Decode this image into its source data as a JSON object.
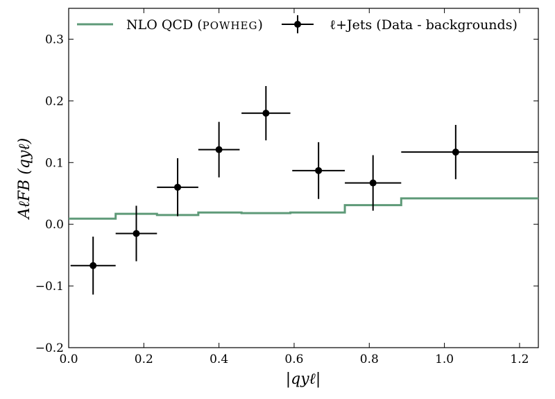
{
  "chart_data": {
    "type": "line",
    "title": "",
    "xlabel": "|qyℓ|",
    "ylabel": "AℓFB (qyℓ)",
    "xlim": [
      0.0,
      1.25
    ],
    "ylim": [
      -0.2,
      0.35
    ],
    "x_ticks": [
      0.0,
      0.2,
      0.4,
      0.6,
      0.8,
      1.0,
      1.2
    ],
    "x_tick_labels": [
      "0.0",
      "0.2",
      "0.4",
      "0.6",
      "0.8",
      "1.0",
      "1.2"
    ],
    "y_ticks": [
      -0.2,
      -0.1,
      0.0,
      0.1,
      0.2,
      0.3
    ],
    "y_tick_labels": [
      "−0.2",
      "−0.1",
      "0.0",
      "0.1",
      "0.2",
      "0.3"
    ],
    "grid": false,
    "legend_position": "top",
    "series": [
      {
        "name": "NLO QCD (POWHEG)",
        "kind": "step",
        "color": "#5e9a78",
        "bin_edges": [
          0.0,
          0.125,
          0.235,
          0.345,
          0.46,
          0.59,
          0.735,
          0.885,
          1.25
        ],
        "values": [
          0.009,
          0.017,
          0.015,
          0.019,
          0.018,
          0.019,
          0.031,
          0.042
        ]
      },
      {
        "name": "ℓ+Jets (Data - backgrounds)",
        "kind": "errorbar",
        "color": "#000000",
        "points": [
          {
            "x": 0.065,
            "y": -0.067,
            "xerr_low": 0.06,
            "xerr_high": 0.06,
            "yerr": 0.047
          },
          {
            "x": 0.18,
            "y": -0.015,
            "xerr_low": 0.055,
            "xerr_high": 0.055,
            "yerr": 0.045
          },
          {
            "x": 0.29,
            "y": 0.06,
            "xerr_low": 0.055,
            "xerr_high": 0.055,
            "yerr": 0.047
          },
          {
            "x": 0.4,
            "y": 0.121,
            "xerr_low": 0.055,
            "xerr_high": 0.055,
            "yerr": 0.045
          },
          {
            "x": 0.525,
            "y": 0.18,
            "xerr_low": 0.065,
            "xerr_high": 0.065,
            "yerr": 0.044
          },
          {
            "x": 0.665,
            "y": 0.087,
            "xerr_low": 0.07,
            "xerr_high": 0.07,
            "yerr": 0.046
          },
          {
            "x": 0.81,
            "y": 0.067,
            "xerr_low": 0.075,
            "xerr_high": 0.075,
            "yerr": 0.045
          },
          {
            "x": 1.03,
            "y": 0.117,
            "xerr_low": 0.145,
            "xerr_high": 0.22,
            "yerr": 0.044
          }
        ]
      }
    ],
    "legend": [
      {
        "label_main": "NLO QCD (",
        "label_sc": "POWHEG",
        "label_tail": ")"
      },
      {
        "label_main": "ℓ+Jets (Data - backgrounds)"
      }
    ]
  }
}
